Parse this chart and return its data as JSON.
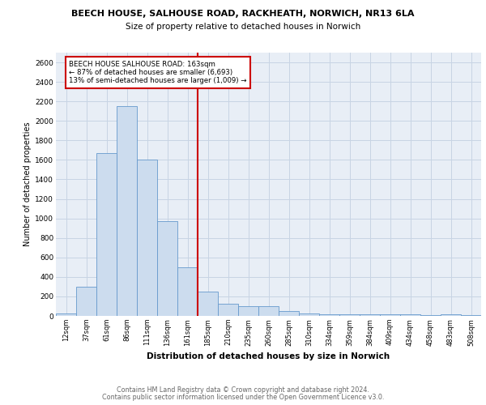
{
  "title1": "BEECH HOUSE, SALHOUSE ROAD, RACKHEATH, NORWICH, NR13 6LA",
  "title2": "Size of property relative to detached houses in Norwich",
  "xlabel": "Distribution of detached houses by size in Norwich",
  "ylabel": "Number of detached properties",
  "bar_color": "#ccdcee",
  "bar_edge_color": "#6699cc",
  "categories": [
    "12sqm",
    "37sqm",
    "61sqm",
    "86sqm",
    "111sqm",
    "136sqm",
    "161sqm",
    "185sqm",
    "210sqm",
    "235sqm",
    "260sqm",
    "285sqm",
    "310sqm",
    "334sqm",
    "359sqm",
    "384sqm",
    "409sqm",
    "434sqm",
    "458sqm",
    "483sqm",
    "508sqm"
  ],
  "values": [
    25,
    300,
    1670,
    2150,
    1600,
    970,
    500,
    250,
    125,
    100,
    100,
    50,
    25,
    20,
    20,
    15,
    15,
    15,
    5,
    20,
    5
  ],
  "vline_color": "#cc0000",
  "annotation_box_color": "#cc0000",
  "annotation_title": "BEECH HOUSE SALHOUSE ROAD: 163sqm",
  "annotation_line1": "← 87% of detached houses are smaller (6,693)",
  "annotation_line2": "13% of semi-detached houses are larger (1,009) →",
  "grid_color": "#c8d4e4",
  "background_color": "#e8eef6",
  "ylim": [
    0,
    2700
  ],
  "yticks": [
    0,
    200,
    400,
    600,
    800,
    1000,
    1200,
    1400,
    1600,
    1800,
    2000,
    2200,
    2400,
    2600
  ],
  "footnote1": "Contains HM Land Registry data © Crown copyright and database right 2024.",
  "footnote2": "Contains public sector information licensed under the Open Government Licence v3.0."
}
